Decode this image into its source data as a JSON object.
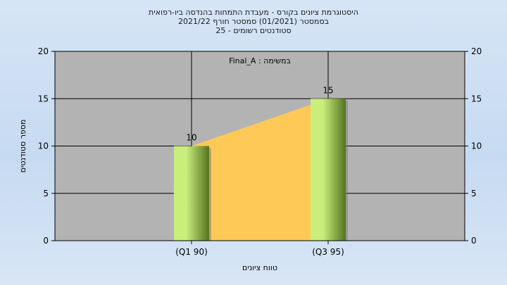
{
  "chart_data": {
    "type": "bar",
    "title_lines": [
      "היסטוגרמת ציונים בקורס - מעבדת התמחות בהנדסה ביו-רפואית",
      "בסמסטר  (01/2021)  סמסטר חורף 2021/22",
      "סטודנטים רשומים - 25"
    ],
    "annotation": "במשימה : Final_A",
    "categories": [
      "(Q1 90)",
      "(Q3 95)"
    ],
    "values": [
      10,
      15
    ],
    "data_labels": [
      "10",
      "15"
    ],
    "xlabel": "טווח ציונים",
    "ylabel": "מספר סטודנטים",
    "ylim": [
      0,
      20
    ],
    "yticks": [
      "0",
      "5",
      "10",
      "15",
      "20"
    ],
    "grid": true,
    "secondary_y_axis": true,
    "colors": {
      "plot_background": "#b3b3b3",
      "area_fill": "#ffc957",
      "bar_light": "#c9ee7c",
      "bar_dark": "#55721f"
    }
  }
}
